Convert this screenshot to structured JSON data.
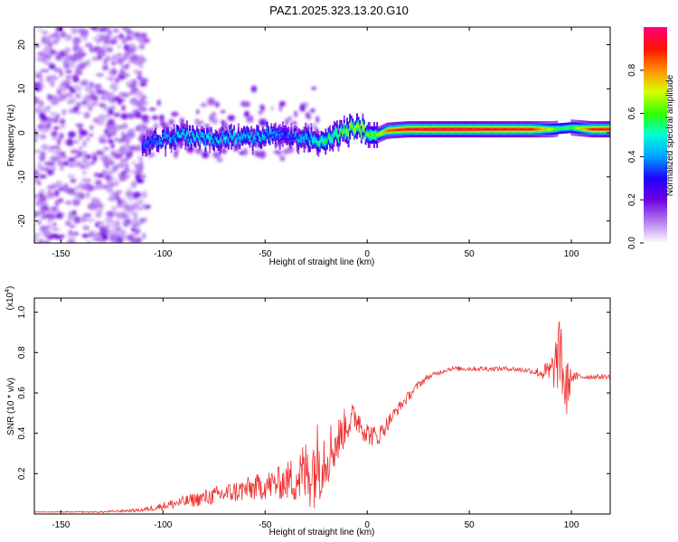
{
  "title": "PAZ1.2025.323.13.20.G10",
  "chart_data": [
    {
      "type": "heatmap",
      "xlabel": "Height of straight line (km)",
      "ylabel": "Frequency (Hz)",
      "xlim": [
        -163,
        119
      ],
      "ylim": [
        -25,
        24
      ],
      "xticks": [
        -150,
        -100,
        -50,
        0,
        50,
        100
      ],
      "yticks": [
        -20,
        -10,
        0,
        10,
        20
      ],
      "colorbar": {
        "label": "Normalized spectral amplitude",
        "range": [
          0,
          1
        ],
        "ticks": [
          "0.0",
          "0.2",
          "0.4",
          "0.6",
          "0.8"
        ],
        "tick_values": [
          0.0,
          0.2,
          0.4,
          0.6,
          0.8
        ],
        "colors": [
          "#ffffff",
          "#b27cf0",
          "#7000e0",
          "#2000ff",
          "#00a0ff",
          "#00ffd8",
          "#30ff00",
          "#d8ff00",
          "#ff9000",
          "#ff1000",
          "#ff0080"
        ]
      },
      "ridge": {
        "x": [
          -110,
          -100,
          -90,
          -80,
          -70,
          -60,
          -50,
          -40,
          -30,
          -25,
          -20,
          -15,
          -10,
          -5,
          0,
          5,
          10,
          20,
          40,
          60,
          80,
          90,
          95,
          100,
          110,
          119
        ],
        "freq": [
          -2.5,
          -1.5,
          -0.5,
          -1.5,
          -1,
          -1.5,
          -0.5,
          -0.5,
          -1.5,
          -2,
          -1.5,
          -0.5,
          0.5,
          1.5,
          -0.5,
          -0.5,
          0.5,
          0.8,
          0.8,
          0.8,
          0.8,
          0.8,
          1.0,
          1.2,
          0.8,
          0.8
        ],
        "amplitude": [
          0.35,
          0.4,
          0.45,
          0.45,
          0.45,
          0.45,
          0.45,
          0.35,
          0.45,
          0.5,
          0.55,
          0.6,
          0.65,
          0.7,
          0.6,
          0.65,
          0.85,
          0.95,
          0.98,
          0.95,
          0.92,
          0.7,
          0.55,
          0.6,
          0.9,
          0.95
        ]
      }
    },
    {
      "type": "line",
      "xlabel": "Height of straight line (km)",
      "ylabel": "SNR (10 * v/v)",
      "yscale_label": "(x10",
      "yscale_exp": "4",
      "yscale_close": ")",
      "xlim": [
        -163,
        119
      ],
      "ylim": [
        0,
        1.07
      ],
      "xticks": [
        -150,
        -100,
        -50,
        0,
        50,
        100
      ],
      "yticks": [
        0.2,
        0.4,
        0.6,
        0.8,
        1.0
      ],
      "ytick_labels": [
        "0.2",
        "0.4",
        "0.6",
        "0.8",
        "1.0"
      ],
      "color": "#ee3030",
      "series": [
        {
          "name": "SNR",
          "x": [
            -163,
            -150,
            -140,
            -130,
            -120,
            -110,
            -100,
            -90,
            -80,
            -70,
            -60,
            -50,
            -40,
            -35,
            -30,
            -25,
            -20,
            -15,
            -10,
            -5,
            0,
            5,
            10,
            15,
            20,
            25,
            30,
            35,
            40,
            50,
            60,
            70,
            80,
            85,
            90,
            95,
            97,
            100,
            105,
            110,
            119
          ],
          "y": [
            0.01,
            0.01,
            0.01,
            0.01,
            0.015,
            0.02,
            0.04,
            0.06,
            0.08,
            0.1,
            0.12,
            0.14,
            0.16,
            0.18,
            0.2,
            0.25,
            0.3,
            0.35,
            0.45,
            0.48,
            0.4,
            0.38,
            0.45,
            0.52,
            0.58,
            0.64,
            0.68,
            0.7,
            0.72,
            0.72,
            0.72,
            0.72,
            0.71,
            0.7,
            0.7,
            0.8,
            0.6,
            0.68,
            0.68,
            0.68,
            0.68
          ],
          "noise": [
            0,
            0.003,
            0.003,
            0.004,
            0.006,
            0.01,
            0.02,
            0.03,
            0.04,
            0.05,
            0.06,
            0.07,
            0.09,
            0.13,
            0.18,
            0.22,
            0.17,
            0.12,
            0.09,
            0.08,
            0.06,
            0.05,
            0.04,
            0.03,
            0.025,
            0.02,
            0.015,
            0.012,
            0.012,
            0.012,
            0.012,
            0.012,
            0.015,
            0.03,
            0.08,
            0.2,
            0.2,
            0.03,
            0.015,
            0.012,
            0.012
          ]
        }
      ]
    }
  ]
}
